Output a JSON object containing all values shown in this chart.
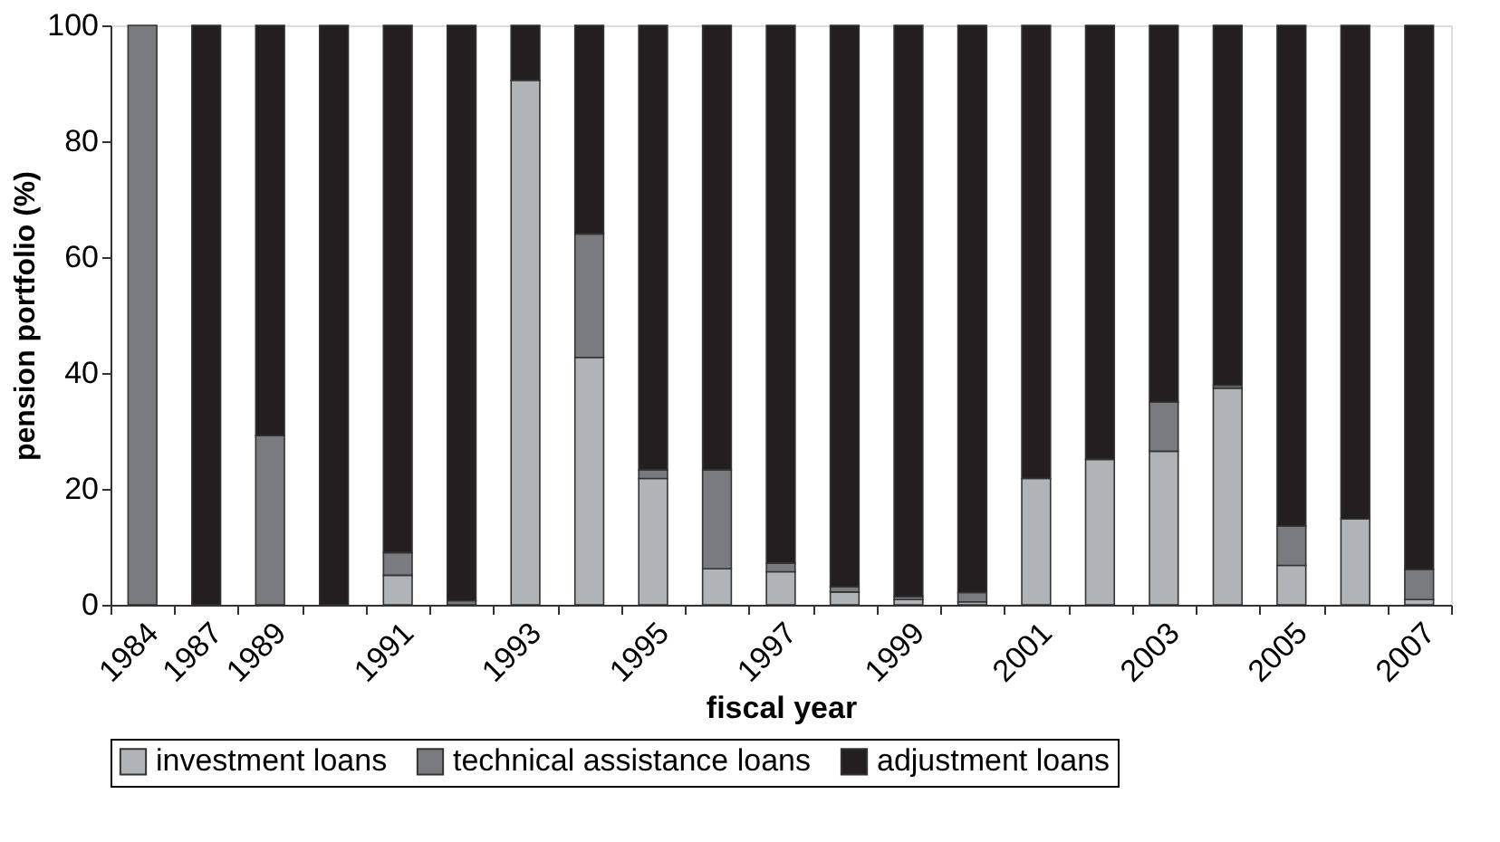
{
  "chart_data": {
    "type": "bar",
    "stacked": true,
    "xlabel": "fiscal year",
    "ylabel": "pension portfolio (%)",
    "categories": [
      "1984",
      "1987",
      "1989",
      null,
      "1991",
      null,
      "1993",
      null,
      "1995",
      null,
      "1997",
      null,
      "1999",
      null,
      "2001",
      null,
      "2003",
      null,
      "2005",
      null,
      "2007"
    ],
    "series": [
      {
        "name": "investment loans",
        "color": "#b1b4b7",
        "values": [
          0,
          0,
          0,
          0,
          5.1,
          0,
          90.5,
          42.7,
          21.8,
          6.2,
          5.7,
          2.2,
          0.9,
          0.5,
          21.8,
          25.1,
          26.5,
          37.4,
          6.8,
          14.8,
          0.9
        ]
      },
      {
        "name": "technical assistance loans",
        "color": "#7a7b7e",
        "values": [
          100,
          0,
          29.2,
          0,
          3.9,
          0.7,
          0,
          21.3,
          1.5,
          17.1,
          1.5,
          0.9,
          0.5,
          1.6,
          0,
          0,
          8.5,
          0.5,
          6.8,
          0,
          5.2
        ]
      },
      {
        "name": "adjustment loans",
        "color": "#231f20",
        "values": [
          0,
          100,
          70.8,
          100,
          91,
          99.3,
          9.5,
          36,
          76.7,
          76.7,
          92.8,
          96.9,
          98.6,
          97.9,
          78.2,
          74.9,
          65,
          62.1,
          86.4,
          85.2,
          93.9
        ]
      }
    ],
    "ylim": [
      0,
      100
    ],
    "yticks": [
      0,
      20,
      40,
      60,
      80,
      100
    ],
    "grid": false,
    "legend": "bottom"
  }
}
